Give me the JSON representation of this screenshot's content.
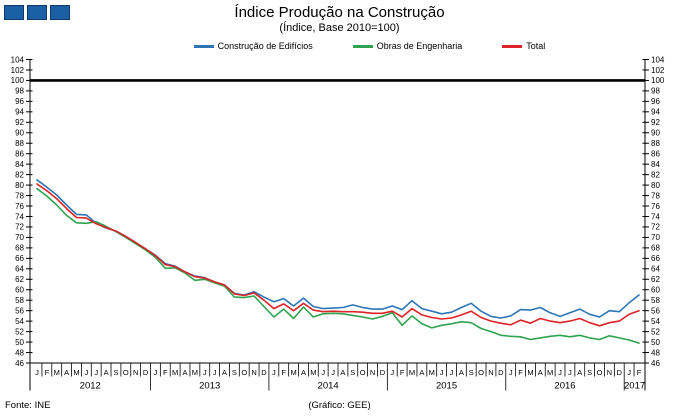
{
  "chart_data": {
    "type": "line",
    "title": "Índice Produção na Construção",
    "subtitle": "(Índice, Base 2010=100)",
    "source": "Fonte: INE",
    "credit": "(Gráfico: GEE)",
    "y_axis": {
      "min": 46,
      "max": 104,
      "step": 2,
      "labels_both_sides": true,
      "grid": false
    },
    "reference_line": {
      "value": 100,
      "color": "#000000"
    },
    "month_letters": [
      "J",
      "F",
      "M",
      "A",
      "M",
      "J",
      "J",
      "A",
      "S",
      "O",
      "N",
      "D"
    ],
    "years": [
      {
        "label": "2012",
        "months": 12
      },
      {
        "label": "2013",
        "months": 12
      },
      {
        "label": "2014",
        "months": 12
      },
      {
        "label": "2015",
        "months": 12
      },
      {
        "label": "2016",
        "months": 12
      },
      {
        "label": "2017",
        "months": 2
      }
    ],
    "legend_position": "top",
    "series": [
      {
        "name": "Construção de Edifícios",
        "color": "#2e75b6",
        "values": [
          81.0,
          79.6,
          78.1,
          76.2,
          74.4,
          74.3,
          72.7,
          71.8,
          71.2,
          70.2,
          69.0,
          67.8,
          66.6,
          65.0,
          64.5,
          63.4,
          62.6,
          62.3,
          61.5,
          60.9,
          59.3,
          59.0,
          59.6,
          58.6,
          57.7,
          58.3,
          56.9,
          58.4,
          56.8,
          56.4,
          56.5,
          56.6,
          57.1,
          56.6,
          56.3,
          56.3,
          56.9,
          56.2,
          57.9,
          56.4,
          55.9,
          55.4,
          55.7,
          56.6,
          57.4,
          55.9,
          54.9,
          54.6,
          55.0,
          56.2,
          56.1,
          56.6,
          55.6,
          54.9,
          55.6,
          56.3,
          55.3,
          54.8,
          56.0,
          55.8,
          57.5,
          59.0
        ]
      },
      {
        "name": "Obras de Engenharia",
        "color": "#2fa34f",
        "values": [
          79.3,
          77.9,
          76.2,
          74.2,
          72.8,
          72.7,
          73.0,
          72.1,
          71.1,
          70.0,
          68.8,
          67.6,
          66.2,
          64.1,
          64.2,
          63.2,
          61.8,
          62.0,
          61.3,
          60.7,
          58.6,
          58.5,
          58.8,
          56.8,
          54.8,
          56.3,
          54.5,
          56.7,
          54.8,
          55.4,
          55.5,
          55.4,
          55.1,
          54.8,
          54.4,
          54.9,
          55.6,
          53.2,
          55.0,
          53.5,
          52.7,
          53.2,
          53.5,
          53.9,
          53.7,
          52.6,
          52.0,
          51.3,
          51.1,
          51.0,
          50.5,
          50.8,
          51.1,
          51.3,
          51.0,
          51.3,
          50.8,
          50.5,
          51.2,
          50.8,
          50.4,
          49.8
        ]
      },
      {
        "name": "Total",
        "color": "#dc2327",
        "values": [
          80.2,
          78.9,
          77.4,
          75.5,
          73.8,
          73.7,
          72.6,
          71.9,
          71.2,
          70.2,
          69.0,
          67.8,
          66.5,
          64.8,
          64.4,
          63.4,
          62.5,
          62.2,
          61.5,
          60.9,
          59.2,
          58.9,
          59.4,
          58.0,
          56.4,
          57.3,
          56.0,
          57.4,
          56.1,
          55.8,
          55.9,
          55.8,
          55.8,
          55.7,
          55.5,
          55.5,
          55.9,
          54.8,
          56.4,
          55.2,
          54.7,
          54.4,
          54.6,
          55.2,
          55.9,
          54.7,
          54.0,
          53.6,
          53.3,
          54.2,
          53.6,
          54.5,
          54.0,
          53.7,
          54.0,
          54.5,
          53.7,
          53.1,
          53.7,
          54.0,
          55.3,
          56.0
        ]
      }
    ]
  }
}
